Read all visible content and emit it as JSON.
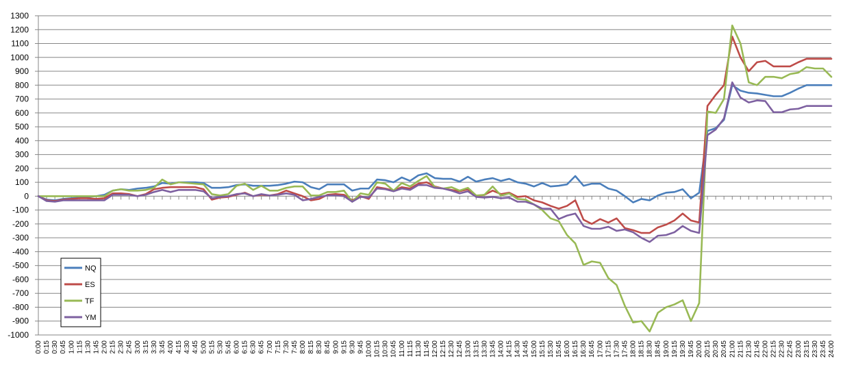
{
  "chart_data": {
    "type": "line",
    "title": "",
    "xlabel": "",
    "ylabel": "",
    "ylim": [
      -1000,
      1300
    ],
    "yticks": [
      -1000,
      -900,
      -800,
      -700,
      -600,
      -500,
      -400,
      -300,
      -200,
      -100,
      0,
      100,
      200,
      300,
      400,
      500,
      600,
      700,
      800,
      900,
      1000,
      1100,
      1200,
      1300
    ],
    "grid": "horizontal",
    "legend": "bottom-left",
    "x": [
      "0:00",
      "0:15",
      "0:30",
      "0:45",
      "1:00",
      "1:15",
      "1:30",
      "1:45",
      "2:00",
      "2:15",
      "2:30",
      "2:45",
      "3:00",
      "3:15",
      "3:30",
      "3:45",
      "4:00",
      "4:15",
      "4:30",
      "4:45",
      "5:00",
      "5:15",
      "5:30",
      "5:45",
      "6:00",
      "6:15",
      "6:30",
      "6:45",
      "7:00",
      "7:15",
      "7:30",
      "7:45",
      "8:00",
      "8:15",
      "8:30",
      "8:45",
      "9:00",
      "9:15",
      "9:30",
      "9:45",
      "10:00",
      "10:15",
      "10:30",
      "10:45",
      "11:00",
      "11:15",
      "11:30",
      "11:45",
      "12:00",
      "12:15",
      "12:30",
      "12:45",
      "13:00",
      "13:15",
      "13:30",
      "13:45",
      "14:00",
      "14:15",
      "14:30",
      "14:45",
      "15:00",
      "15:15",
      "15:30",
      "15:45",
      "16:00",
      "16:15",
      "16:30",
      "16:45",
      "17:00",
      "17:15",
      "17:30",
      "17:45",
      "18:00",
      "18:15",
      "18:30",
      "18:45",
      "19:00",
      "19:15",
      "19:30",
      "19:45",
      "20:00",
      "20:15",
      "20:30",
      "20:45",
      "21:00",
      "21:15",
      "21:30",
      "21:45",
      "22:00",
      "22:15",
      "22:30",
      "22:45",
      "23:00",
      "23:15",
      "23:30",
      "23:45",
      "24:00"
    ],
    "series": [
      {
        "name": "NQ",
        "color": "#4A7EBB",
        "values": [
          0,
          -25,
          -30,
          -20,
          -15,
          -10,
          -5,
          0,
          10,
          40,
          50,
          45,
          55,
          60,
          70,
          95,
          90,
          100,
          100,
          100,
          95,
          60,
          60,
          65,
          80,
          85,
          75,
          75,
          75,
          80,
          90,
          105,
          100,
          65,
          50,
          85,
          85,
          85,
          40,
          55,
          55,
          120,
          115,
          100,
          135,
          110,
          150,
          165,
          130,
          125,
          125,
          105,
          140,
          105,
          120,
          130,
          110,
          125,
          100,
          90,
          70,
          95,
          70,
          75,
          85,
          145,
          75,
          90,
          90,
          55,
          40,
          0,
          -45,
          -20,
          -30,
          5,
          25,
          30,
          50,
          -15,
          25,
          470,
          490,
          550,
          800,
          760,
          745,
          740,
          730,
          720,
          720,
          745,
          775,
          800,
          800,
          800,
          800
        ]
      },
      {
        "name": "ES",
        "color": "#BE4B48",
        "values": [
          0,
          -30,
          -35,
          -25,
          -20,
          -15,
          -15,
          -20,
          -15,
          20,
          20,
          15,
          0,
          15,
          50,
          60,
          65,
          65,
          65,
          65,
          50,
          -25,
          -10,
          -5,
          10,
          25,
          0,
          10,
          5,
          15,
          40,
          20,
          0,
          -30,
          -20,
          10,
          15,
          10,
          -30,
          0,
          -20,
          65,
          55,
          40,
          65,
          55,
          90,
          100,
          70,
          55,
          45,
          35,
          50,
          0,
          10,
          40,
          15,
          25,
          -5,
          0,
          -30,
          -45,
          -70,
          -90,
          -70,
          -30,
          -170,
          -200,
          -165,
          -190,
          -160,
          -230,
          -245,
          -265,
          -265,
          -225,
          -205,
          -175,
          -125,
          -175,
          -190,
          650,
          730,
          800,
          1150,
          1000,
          900,
          965,
          975,
          935,
          935,
          935,
          965,
          990,
          990,
          990,
          990
        ]
      },
      {
        "name": "TF",
        "color": "#98B954",
        "values": [
          0,
          0,
          0,
          0,
          0,
          0,
          0,
          0,
          0,
          40,
          50,
          40,
          40,
          45,
          60,
          120,
          85,
          100,
          95,
          90,
          85,
          15,
          5,
          15,
          75,
          90,
          45,
          75,
          40,
          40,
          60,
          70,
          70,
          5,
          5,
          30,
          30,
          40,
          -40,
          20,
          10,
          100,
          90,
          40,
          95,
          70,
          110,
          145,
          65,
          55,
          65,
          40,
          60,
          5,
          10,
          70,
          5,
          20,
          -20,
          -25,
          -60,
          -100,
          -160,
          -180,
          -280,
          -340,
          -495,
          -470,
          -480,
          -590,
          -640,
          -790,
          -910,
          -900,
          -975,
          -840,
          -800,
          -780,
          -750,
          -900,
          -770,
          610,
          600,
          700,
          1230,
          1100,
          820,
          800,
          860,
          860,
          850,
          880,
          890,
          930,
          920,
          920,
          860
        ]
      },
      {
        "name": "YM",
        "color": "#7D60A0",
        "values": [
          0,
          -35,
          -40,
          -30,
          -30,
          -30,
          -30,
          -30,
          -30,
          10,
          10,
          10,
          0,
          10,
          30,
          45,
          30,
          45,
          45,
          45,
          35,
          -15,
          -5,
          0,
          15,
          20,
          0,
          15,
          5,
          10,
          20,
          10,
          -30,
          -20,
          -5,
          5,
          5,
          0,
          -40,
          -5,
          -10,
          55,
          50,
          35,
          55,
          45,
          80,
          80,
          60,
          55,
          40,
          20,
          35,
          -5,
          -10,
          -5,
          -15,
          -10,
          -40,
          -40,
          -60,
          -90,
          -90,
          -165,
          -140,
          -125,
          -215,
          -235,
          -235,
          -220,
          -250,
          -240,
          -260,
          -300,
          -330,
          -285,
          -280,
          -260,
          -215,
          -250,
          -265,
          440,
          480,
          560,
          820,
          710,
          675,
          690,
          685,
          605,
          605,
          625,
          630,
          650,
          650,
          650,
          650
        ]
      }
    ]
  }
}
